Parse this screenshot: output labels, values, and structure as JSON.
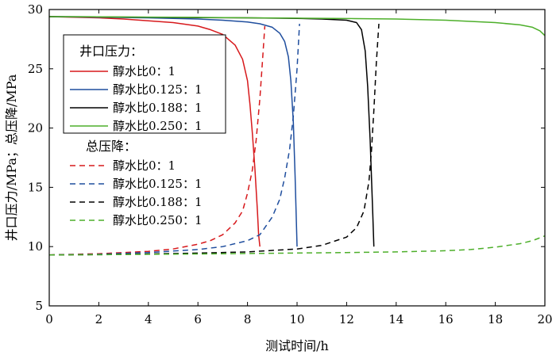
{
  "chart_data": {
    "type": "line",
    "xlabel": "测试时间/h",
    "ylabel": "井口压力/MPa；总压降/MPa",
    "xlim": [
      0,
      20
    ],
    "ylim": [
      5,
      30
    ],
    "xticks": [
      0,
      2,
      4,
      6,
      8,
      10,
      12,
      14,
      16,
      18,
      20
    ],
    "yticks": [
      5,
      10,
      15,
      20,
      25,
      30
    ],
    "grid": false,
    "legend": {
      "placement": "left",
      "groups": [
        {
          "heading": "井口压力：",
          "style": "solid",
          "entries": [
            "醇水比0：1",
            "醇水比0.125：1",
            "醇水比0.188：1",
            "醇水比0.250：1"
          ]
        },
        {
          "heading": "总压降：",
          "style": "dashed",
          "entries": [
            "醇水比0：1",
            "醇水比0.125：1",
            "醇水比0.188：1",
            "醇水比0.250：1"
          ]
        }
      ]
    },
    "colors": {
      "ratio_0": "#d7191c",
      "ratio_0125": "#1f4e9e",
      "ratio_0188": "#000000",
      "ratio_0250": "#4daf2a"
    },
    "series": [
      {
        "group": "井口压力",
        "style": "solid",
        "colorKey": "ratio_0",
        "x": [
          0,
          1,
          2,
          3,
          4,
          5,
          6,
          6.5,
          7,
          7.5,
          7.8,
          8.0,
          8.1,
          8.2,
          8.3,
          8.4,
          8.45,
          8.5
        ],
        "y": [
          29.4,
          29.35,
          29.3,
          29.2,
          29.05,
          28.9,
          28.6,
          28.3,
          27.9,
          27.0,
          25.8,
          24.0,
          22.0,
          19.5,
          16.5,
          13.0,
          11.0,
          10.0
        ]
      },
      {
        "group": "井口压力",
        "style": "solid",
        "colorKey": "ratio_0125",
        "x": [
          0,
          2,
          4,
          6,
          7,
          8,
          8.5,
          9,
          9.3,
          9.5,
          9.65,
          9.75,
          9.85,
          9.92,
          10.0
        ],
        "y": [
          29.4,
          29.35,
          29.3,
          29.2,
          29.1,
          28.95,
          28.8,
          28.5,
          28.0,
          27.3,
          26.0,
          24.0,
          20.5,
          16.0,
          10.0
        ]
      },
      {
        "group": "井口压力",
        "style": "solid",
        "colorKey": "ratio_0188",
        "x": [
          0,
          2,
          4,
          6,
          8,
          10,
          11,
          12,
          12.4,
          12.6,
          12.75,
          12.85,
          12.95,
          13.05,
          13.1
        ],
        "y": [
          29.4,
          29.38,
          29.35,
          29.32,
          29.3,
          29.25,
          29.2,
          29.1,
          28.9,
          28.3,
          26.5,
          23.5,
          19.0,
          13.0,
          10.0
        ]
      },
      {
        "group": "井口压力",
        "style": "solid",
        "colorKey": "ratio_0250",
        "x": [
          0,
          2,
          4,
          6,
          8,
          10,
          12,
          14,
          16,
          17,
          18,
          19,
          19.5,
          19.8,
          20.0
        ],
        "y": [
          29.4,
          29.38,
          29.36,
          29.34,
          29.3,
          29.27,
          29.24,
          29.2,
          29.1,
          29.0,
          28.9,
          28.7,
          28.5,
          28.2,
          27.8
        ]
      },
      {
        "group": "总压降",
        "style": "dashed",
        "colorKey": "ratio_0",
        "x": [
          0,
          2,
          4,
          5,
          6,
          6.5,
          7,
          7.5,
          7.8,
          8.0,
          8.2,
          8.35,
          8.5,
          8.6,
          8.7
        ],
        "y": [
          9.3,
          9.4,
          9.6,
          9.8,
          10.2,
          10.5,
          11.0,
          12.0,
          13.0,
          14.5,
          16.5,
          19.0,
          22.5,
          25.5,
          28.6
        ]
      },
      {
        "group": "总压降",
        "style": "dashed",
        "colorKey": "ratio_0125",
        "x": [
          0,
          2,
          4,
          6,
          7,
          8,
          8.5,
          9,
          9.3,
          9.5,
          9.7,
          9.85,
          10.0,
          10.1
        ],
        "y": [
          9.3,
          9.35,
          9.5,
          9.75,
          10.0,
          10.5,
          11.0,
          12.5,
          14.0,
          15.8,
          18.2,
          21.0,
          25.0,
          28.8
        ]
      },
      {
        "group": "总压降",
        "style": "dashed",
        "colorKey": "ratio_0188",
        "x": [
          0,
          2,
          4,
          6,
          8,
          10,
          11,
          12,
          12.4,
          12.7,
          12.9,
          13.0,
          13.1,
          13.2,
          13.3
        ],
        "y": [
          9.3,
          9.32,
          9.38,
          9.45,
          9.55,
          9.8,
          10.1,
          10.8,
          11.6,
          13.0,
          15.5,
          18.0,
          21.5,
          25.5,
          28.8
        ]
      },
      {
        "group": "总压降",
        "style": "dashed",
        "colorKey": "ratio_0250",
        "x": [
          0,
          2,
          4,
          6,
          8,
          10,
          12,
          14,
          16,
          17,
          18,
          19,
          19.5,
          20.0
        ],
        "y": [
          9.3,
          9.32,
          9.35,
          9.38,
          9.42,
          9.46,
          9.5,
          9.55,
          9.65,
          9.75,
          9.95,
          10.25,
          10.5,
          10.9
        ]
      }
    ]
  }
}
